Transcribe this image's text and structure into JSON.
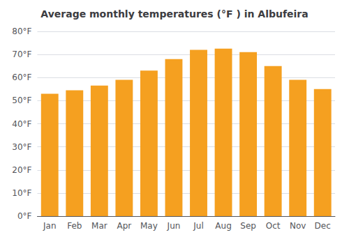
{
  "chart_data": {
    "type": "bar",
    "title": "Average monthly temperatures (°F ) in Albufeira",
    "categories": [
      "Jan",
      "Feb",
      "Mar",
      "Apr",
      "May",
      "Jun",
      "Jul",
      "Aug",
      "Sep",
      "Oct",
      "Nov",
      "Dec"
    ],
    "values": [
      53,
      54.5,
      56.5,
      59,
      63,
      68,
      72,
      72.5,
      71,
      65,
      59,
      55
    ],
    "color": "#F5A020",
    "ylim": [
      0,
      80
    ],
    "yticks": [
      {
        "value": 0,
        "label": "0°F"
      },
      {
        "value": 10,
        "label": "10°F"
      },
      {
        "value": 20,
        "label": "20°F"
      },
      {
        "value": 30,
        "label": "30°F"
      },
      {
        "value": 40,
        "label": "40°F"
      },
      {
        "value": 50,
        "label": "50°F"
      },
      {
        "value": 60,
        "label": "60°F"
      },
      {
        "value": 70,
        "label": "70°F"
      },
      {
        "value": 80,
        "label": "80°F"
      }
    ],
    "grid": true
  }
}
